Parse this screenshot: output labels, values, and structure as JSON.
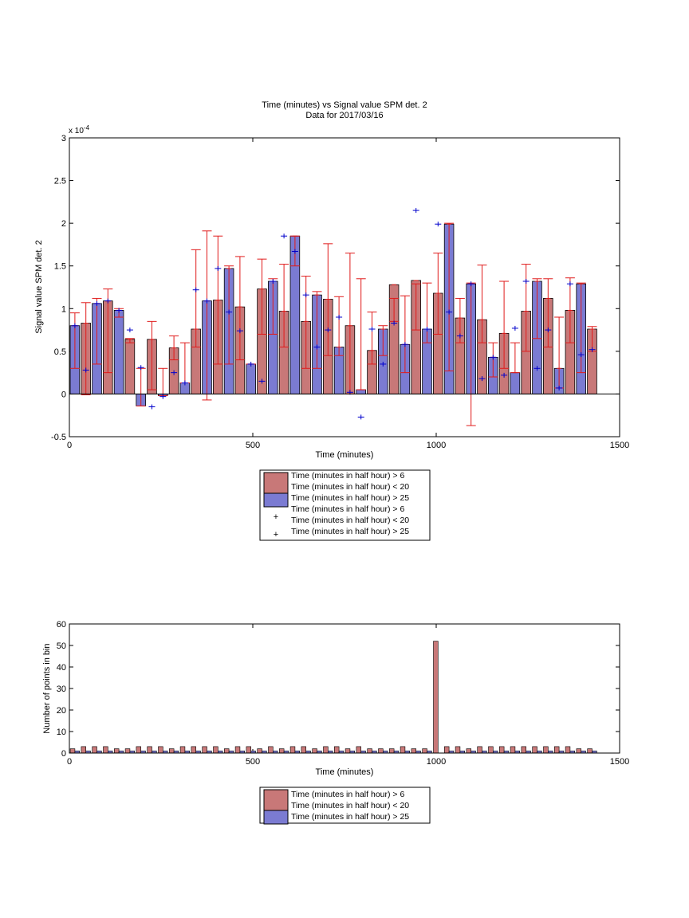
{
  "colors": {
    "bar_red": "#c87878",
    "bar_blue": "#7b7bd2",
    "err_red": "#e01b1b",
    "mark_blue": "#0000cc"
  },
  "chart_data": [
    {
      "type": "bar",
      "title": "Time (minutes) vs Signal value SPM det. 2",
      "subtitle": "Data for 2017/03/16",
      "xlabel": "Time (minutes)",
      "ylabel": "Signal value SPM det. 2",
      "exponent_label": "x 10",
      "exponent_power": "-4",
      "xlim": [
        0,
        1500
      ],
      "ylim": [
        -0.5,
        3
      ],
      "y_scale": "1e-4",
      "xticks": [
        "0",
        "500",
        "1000",
        "1500"
      ],
      "yticks": [
        "-0.5",
        "0",
        "0.5",
        "1",
        "1.5",
        "2",
        "2.5",
        "3"
      ],
      "legend_position": "below",
      "legend": [
        {
          "lines": [
            "Time (minutes in half hour) > 6",
            "Time (minutes in half hour) < 20"
          ],
          "marker": "red-bar"
        },
        {
          "lines": [
            "Time (minutes in half hour) > 25"
          ],
          "marker": "blue-bar"
        },
        {
          "lines": [
            "Time (minutes in half hour) > 6",
            "Time (minutes in half hour) < 20"
          ],
          "marker": "red-plus"
        },
        {
          "lines": [
            "Time (minutes in half hour) > 25"
          ],
          "marker": "blue-plus"
        }
      ],
      "series": [
        {
          "x": [
            45,
            105,
            165,
            225,
            285,
            345,
            405,
            465,
            525,
            585,
            645,
            705,
            765,
            825,
            885,
            945,
            1005,
            1065,
            1125,
            1185,
            1245,
            1305,
            1365,
            1425
          ],
          "values": [
            0.83,
            1.09,
            0.64,
            0.64,
            0.54,
            0.76,
            1.1,
            1.02,
            1.23,
            0.97,
            0.85,
            1.11,
            0.8,
            0.51,
            1.28,
            1.33,
            1.18,
            0.89,
            0.87,
            0.71,
            0.97,
            1.12,
            0.98,
            0.76
          ],
          "err_low": [
            -0.01,
            0.25,
            0.6,
            0.05,
            0.4,
            0.55,
            0.35,
            0.4,
            0.7,
            0.55,
            0.3,
            0.45,
            0.0,
            0.35,
            0.85,
            0.75,
            0.7,
            0.6,
            0.6,
            0.3,
            0.5,
            0.55,
            0.6,
            0.5
          ],
          "err_high": [
            1.07,
            1.23,
            0.65,
            0.85,
            0.68,
            1.69,
            1.85,
            1.61,
            1.58,
            1.52,
            1.38,
            1.76,
            1.65,
            0.96,
            1.12,
            1.29,
            1.65,
            1.12,
            1.51,
            1.32,
            1.52,
            1.35,
            1.36,
            0.79
          ]
        },
        {
          "x": [
            15,
            75,
            135,
            195,
            255,
            315,
            375,
            435,
            495,
            555,
            615,
            675,
            735,
            795,
            855,
            915,
            975,
            1035,
            1095,
            1155,
            1215,
            1275,
            1335,
            1395
          ],
          "values": [
            0.8,
            1.06,
            0.98,
            -0.14,
            -0.02,
            0.13,
            1.09,
            1.47,
            0.35,
            1.32,
            1.85,
            1.16,
            0.55,
            0.05,
            0.76,
            0.58,
            0.76,
            1.99,
            1.29,
            0.43,
            0.25,
            1.32,
            0.3,
            1.29
          ],
          "err_low": [
            0.3,
            0.35,
            0.9,
            -0.14,
            -0.02,
            0.13,
            -0.07,
            0.35,
            0.35,
            0.7,
            1.5,
            0.3,
            0.45,
            0.05,
            0.45,
            0.25,
            0.6,
            0.27,
            -0.37,
            0.2,
            0.25,
            0.65,
            0.07,
            0.25
          ],
          "err_high": [
            0.95,
            1.12,
            1.0,
            0.3,
            0.3,
            0.6,
            1.91,
            1.5,
            0.35,
            1.35,
            1.85,
            1.2,
            1.14,
            1.35,
            0.8,
            1.15,
            1.3,
            2.0,
            1.3,
            0.6,
            0.6,
            1.35,
            0.9,
            1.3
          ]
        },
        {
          "x": [
            15,
            45,
            75,
            105,
            135,
            165,
            195,
            225,
            255,
            285,
            315,
            345,
            375,
            405,
            435,
            465,
            495,
            525,
            555,
            585,
            615,
            645,
            675,
            705,
            735,
            765,
            795,
            825,
            855,
            885,
            915,
            945,
            975,
            1005,
            1035,
            1065,
            1095,
            1125,
            1155,
            1185,
            1215,
            1245,
            1275,
            1305,
            1335,
            1365,
            1395,
            1425
          ],
          "values": [
            0.8,
            0.28,
            1.06,
            1.09,
            0.98,
            0.75,
            0.31,
            -0.15,
            -0.03,
            0.25,
            0.13,
            1.22,
            1.09,
            1.47,
            0.96,
            0.74,
            0.35,
            0.15,
            1.32,
            1.85,
            1.67,
            1.16,
            0.55,
            0.75,
            0.9,
            0.02,
            -0.27,
            0.76,
            0.35,
            0.83,
            0.58,
            2.15,
            0.76,
            1.99,
            0.96,
            0.68,
            1.29,
            0.18,
            0.43,
            0.22,
            0.77,
            1.32,
            0.3,
            0.75,
            0.07,
            1.29,
            0.46,
            0.52
          ]
        }
      ]
    },
    {
      "type": "bar",
      "title": "",
      "xlabel": "Time (minutes)",
      "ylabel": "Number of points in bin",
      "xlim": [
        0,
        1500
      ],
      "ylim": [
        0,
        60
      ],
      "xticks": [
        "0",
        "500",
        "1000",
        "1500"
      ],
      "yticks": [
        "0",
        "10",
        "20",
        "30",
        "40",
        "50",
        "60"
      ],
      "legend_position": "below",
      "legend": [
        {
          "lines": [
            "Time (minutes in half hour) > 6",
            "Time (minutes in half hour) < 20"
          ],
          "marker": "red-bar"
        },
        {
          "lines": [
            "Time (minutes in half hour) > 25"
          ],
          "marker": "blue-bar"
        }
      ],
      "series": [
        {
          "x": [
            15,
            45,
            75,
            105,
            135,
            165,
            195,
            225,
            255,
            285,
            315,
            345,
            375,
            405,
            435,
            465,
            495,
            525,
            555,
            585,
            615,
            645,
            675,
            705,
            735,
            765,
            795,
            825,
            855,
            885,
            915,
            945,
            975,
            1005,
            1035,
            1065,
            1095,
            1125,
            1155,
            1185,
            1215,
            1245,
            1275,
            1305,
            1335,
            1365,
            1395,
            1425
          ],
          "values": [
            2,
            3,
            3,
            3,
            2,
            2,
            3,
            3,
            3,
            2,
            3,
            3,
            3,
            3,
            2,
            3,
            3,
            2,
            3,
            2,
            3,
            3,
            2,
            3,
            3,
            2,
            3,
            2,
            2,
            2,
            3,
            2,
            2,
            52,
            3,
            3,
            2,
            3,
            3,
            3,
            3,
            3,
            3,
            3,
            3,
            3,
            2,
            2
          ]
        },
        {
          "x": [
            15,
            45,
            75,
            105,
            135,
            165,
            195,
            225,
            255,
            285,
            315,
            345,
            375,
            405,
            435,
            465,
            495,
            525,
            555,
            585,
            615,
            645,
            675,
            705,
            735,
            765,
            795,
            825,
            855,
            885,
            915,
            945,
            975,
            1005,
            1035,
            1065,
            1095,
            1125,
            1155,
            1185,
            1215,
            1245,
            1275,
            1305,
            1335,
            1365,
            1395,
            1425
          ],
          "values": [
            1,
            1,
            1,
            1,
            1,
            1,
            1,
            1,
            1,
            1,
            1,
            1,
            1,
            1,
            1,
            1,
            1,
            1,
            1,
            1,
            1,
            1,
            1,
            1,
            1,
            1,
            1,
            1,
            1,
            1,
            1,
            1,
            1,
            0,
            1,
            1,
            1,
            1,
            1,
            1,
            1,
            1,
            1,
            1,
            1,
            1,
            1,
            1
          ]
        }
      ]
    }
  ]
}
